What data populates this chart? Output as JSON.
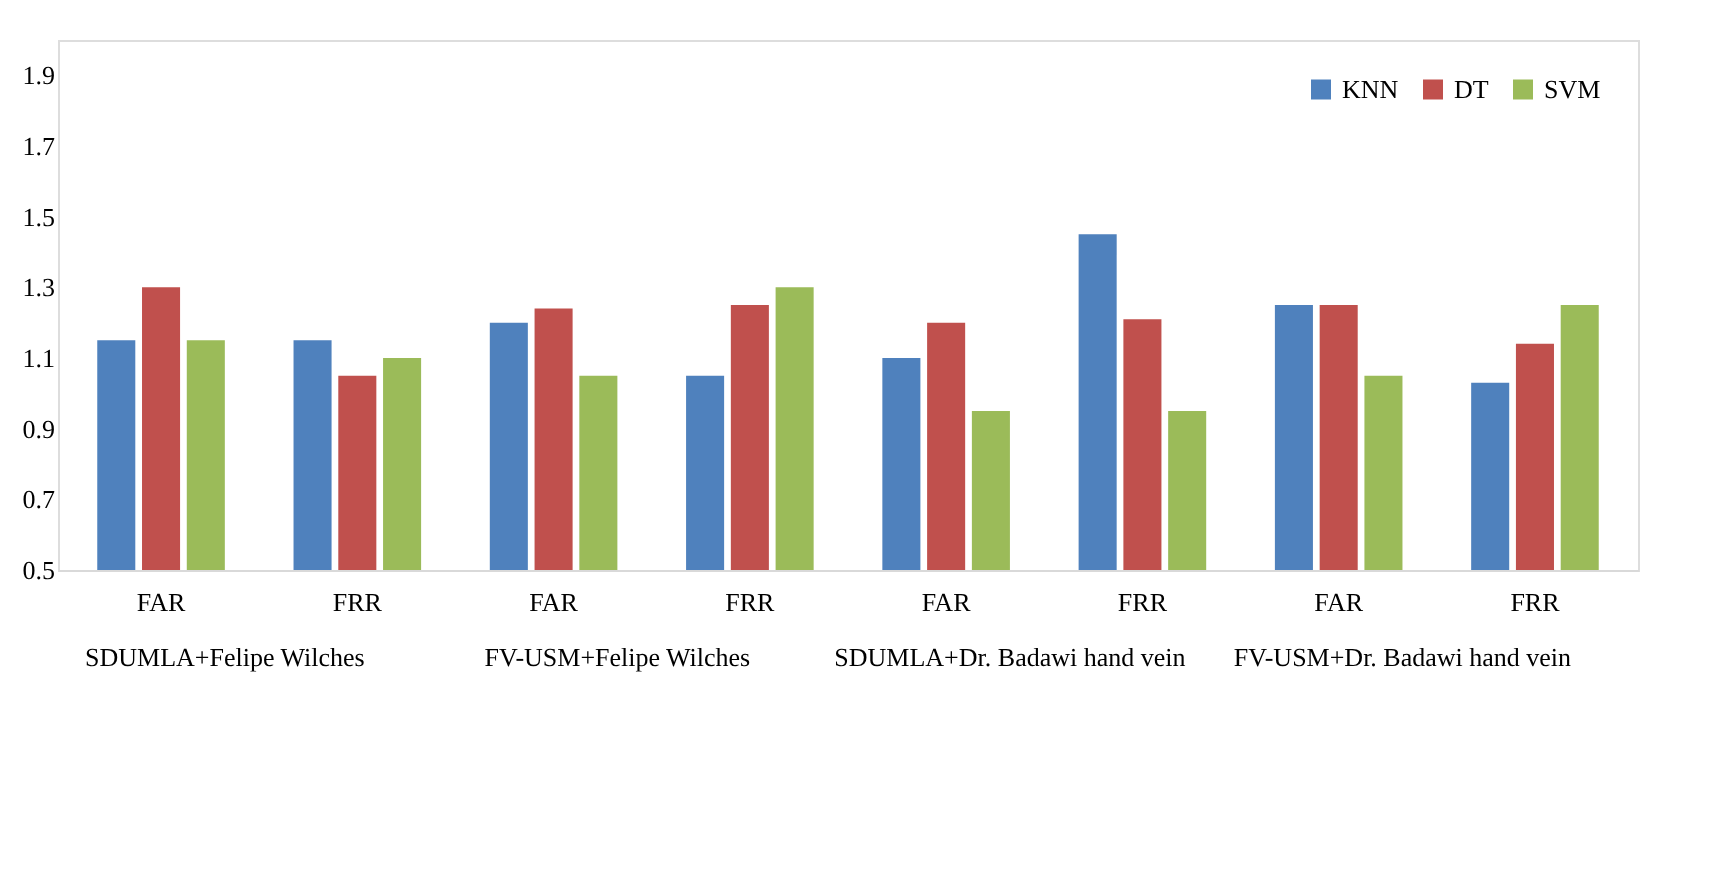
{
  "chart_data": {
    "type": "bar",
    "categories": [
      "FAR",
      "FRR",
      "FAR",
      "FRR",
      "FAR",
      "FRR",
      "FAR",
      "FRR"
    ],
    "series": [
      {
        "name": "KNN",
        "color": "#4f81bd",
        "values": [
          1.15,
          1.15,
          1.2,
          1.05,
          1.1,
          1.45,
          1.25,
          1.03
        ]
      },
      {
        "name": "DT",
        "color": "#c0504d",
        "values": [
          1.3,
          1.05,
          1.24,
          1.25,
          1.2,
          1.21,
          1.25,
          1.14
        ]
      },
      {
        "name": "SVM",
        "color": "#9bbb59",
        "values": [
          1.15,
          1.1,
          1.05,
          1.3,
          0.95,
          0.95,
          1.05,
          1.25
        ]
      }
    ],
    "annotations": [
      "SDUMLA+Felipe Wilches",
      "FV-USM+Felipe Wilches",
      "SDUMLA+Dr. Badawi hand vein",
      "FV-USM+Dr. Badawi hand vein"
    ],
    "ylim": [
      0.5,
      2.0
    ],
    "yticks": [
      0.5,
      0.7,
      0.9,
      1.1,
      1.3,
      1.5,
      1.7,
      1.9
    ],
    "grid": false,
    "legend": "top right"
  }
}
